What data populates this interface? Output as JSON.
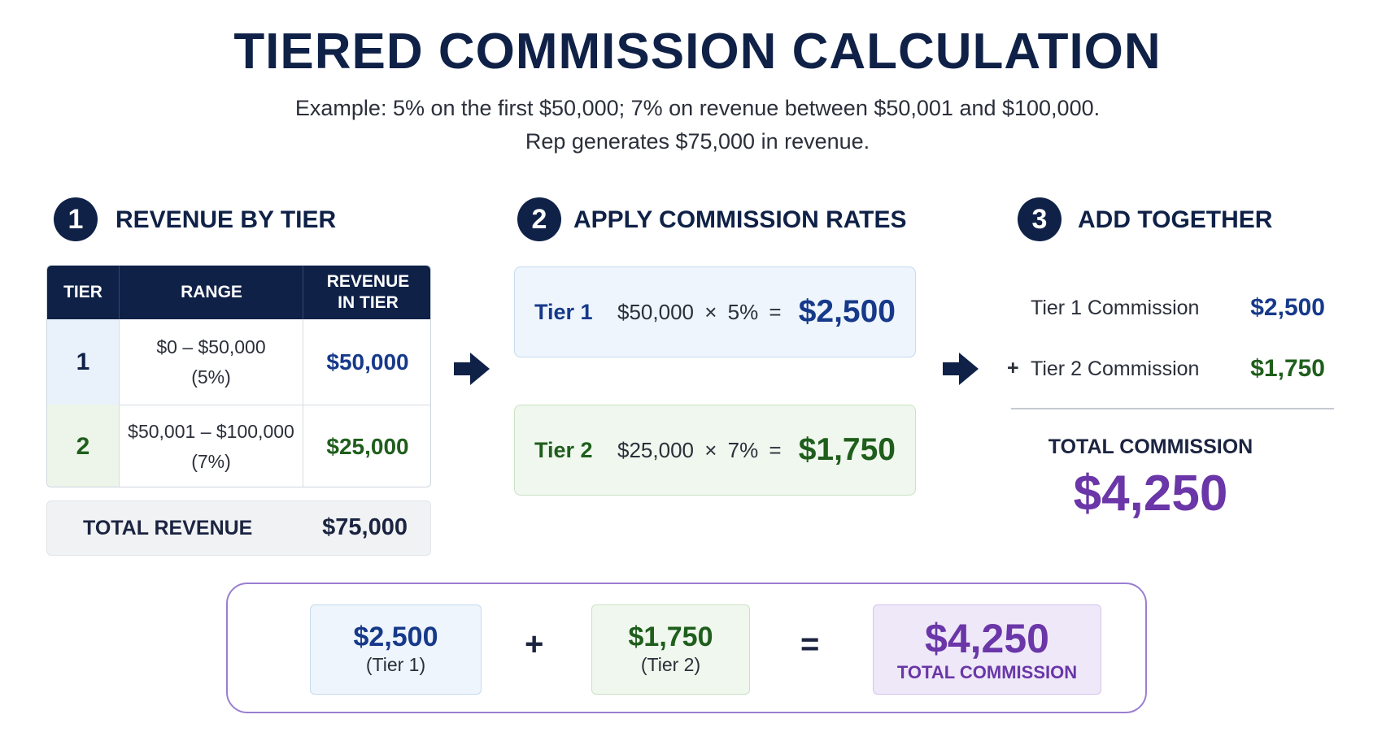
{
  "title": "TIERED COMMISSION CALCULATION",
  "subtitle_lines": [
    "Example: 5% on the first $50,000; 7% on revenue between $50,001 and $100,000.",
    "Rep generates $75,000 in revenue."
  ],
  "steps": [
    {
      "number": "1",
      "heading": "REVENUE BY TIER"
    },
    {
      "number": "2",
      "heading": "APPLY COMMISSION RATES"
    },
    {
      "number": "3",
      "heading": "ADD TOGETHER"
    }
  ],
  "revenue_table": {
    "headers": [
      "TIER",
      "RANGE",
      "REVENUE\nIN TIER"
    ],
    "rows": [
      {
        "tier": "1",
        "range": "$0 – $50,000",
        "rate": "(5%)",
        "revenue": "$50,000"
      },
      {
        "tier": "2",
        "range": "$50,001 – $100,000",
        "rate": "(7%)",
        "revenue": "$25,000"
      }
    ],
    "total_label": "TOTAL REVENUE",
    "total_value": "$75,000"
  },
  "rates": [
    {
      "label": "Tier 1",
      "expression": "$50,000 × 5% =",
      "result": "$2,500"
    },
    {
      "label": "Tier 2",
      "expression": "$25,000 × 7% =",
      "result": "$1,750"
    }
  ],
  "summary": {
    "lines": [
      {
        "prefix": "",
        "label": "Tier 1 Commission",
        "value": "$2,500"
      },
      {
        "prefix": "+",
        "label": "Tier 2 Commission",
        "value": "$1,750"
      }
    ],
    "total_label": "TOTAL COMMISSION",
    "total_value": "$4,250"
  },
  "formula": {
    "term1_value": "$2,500",
    "term1_caption": "(Tier 1)",
    "plus": "+",
    "term2_value": "$1,750",
    "term2_caption": "(Tier 2)",
    "equals": "=",
    "result_value": "$4,250",
    "result_caption": "TOTAL COMMISSION"
  },
  "colors": {
    "navy": "#0f2147",
    "tier1_blue": "#16398a",
    "tier2_green": "#1f5e1c",
    "total_purple": "#6a36a8"
  }
}
